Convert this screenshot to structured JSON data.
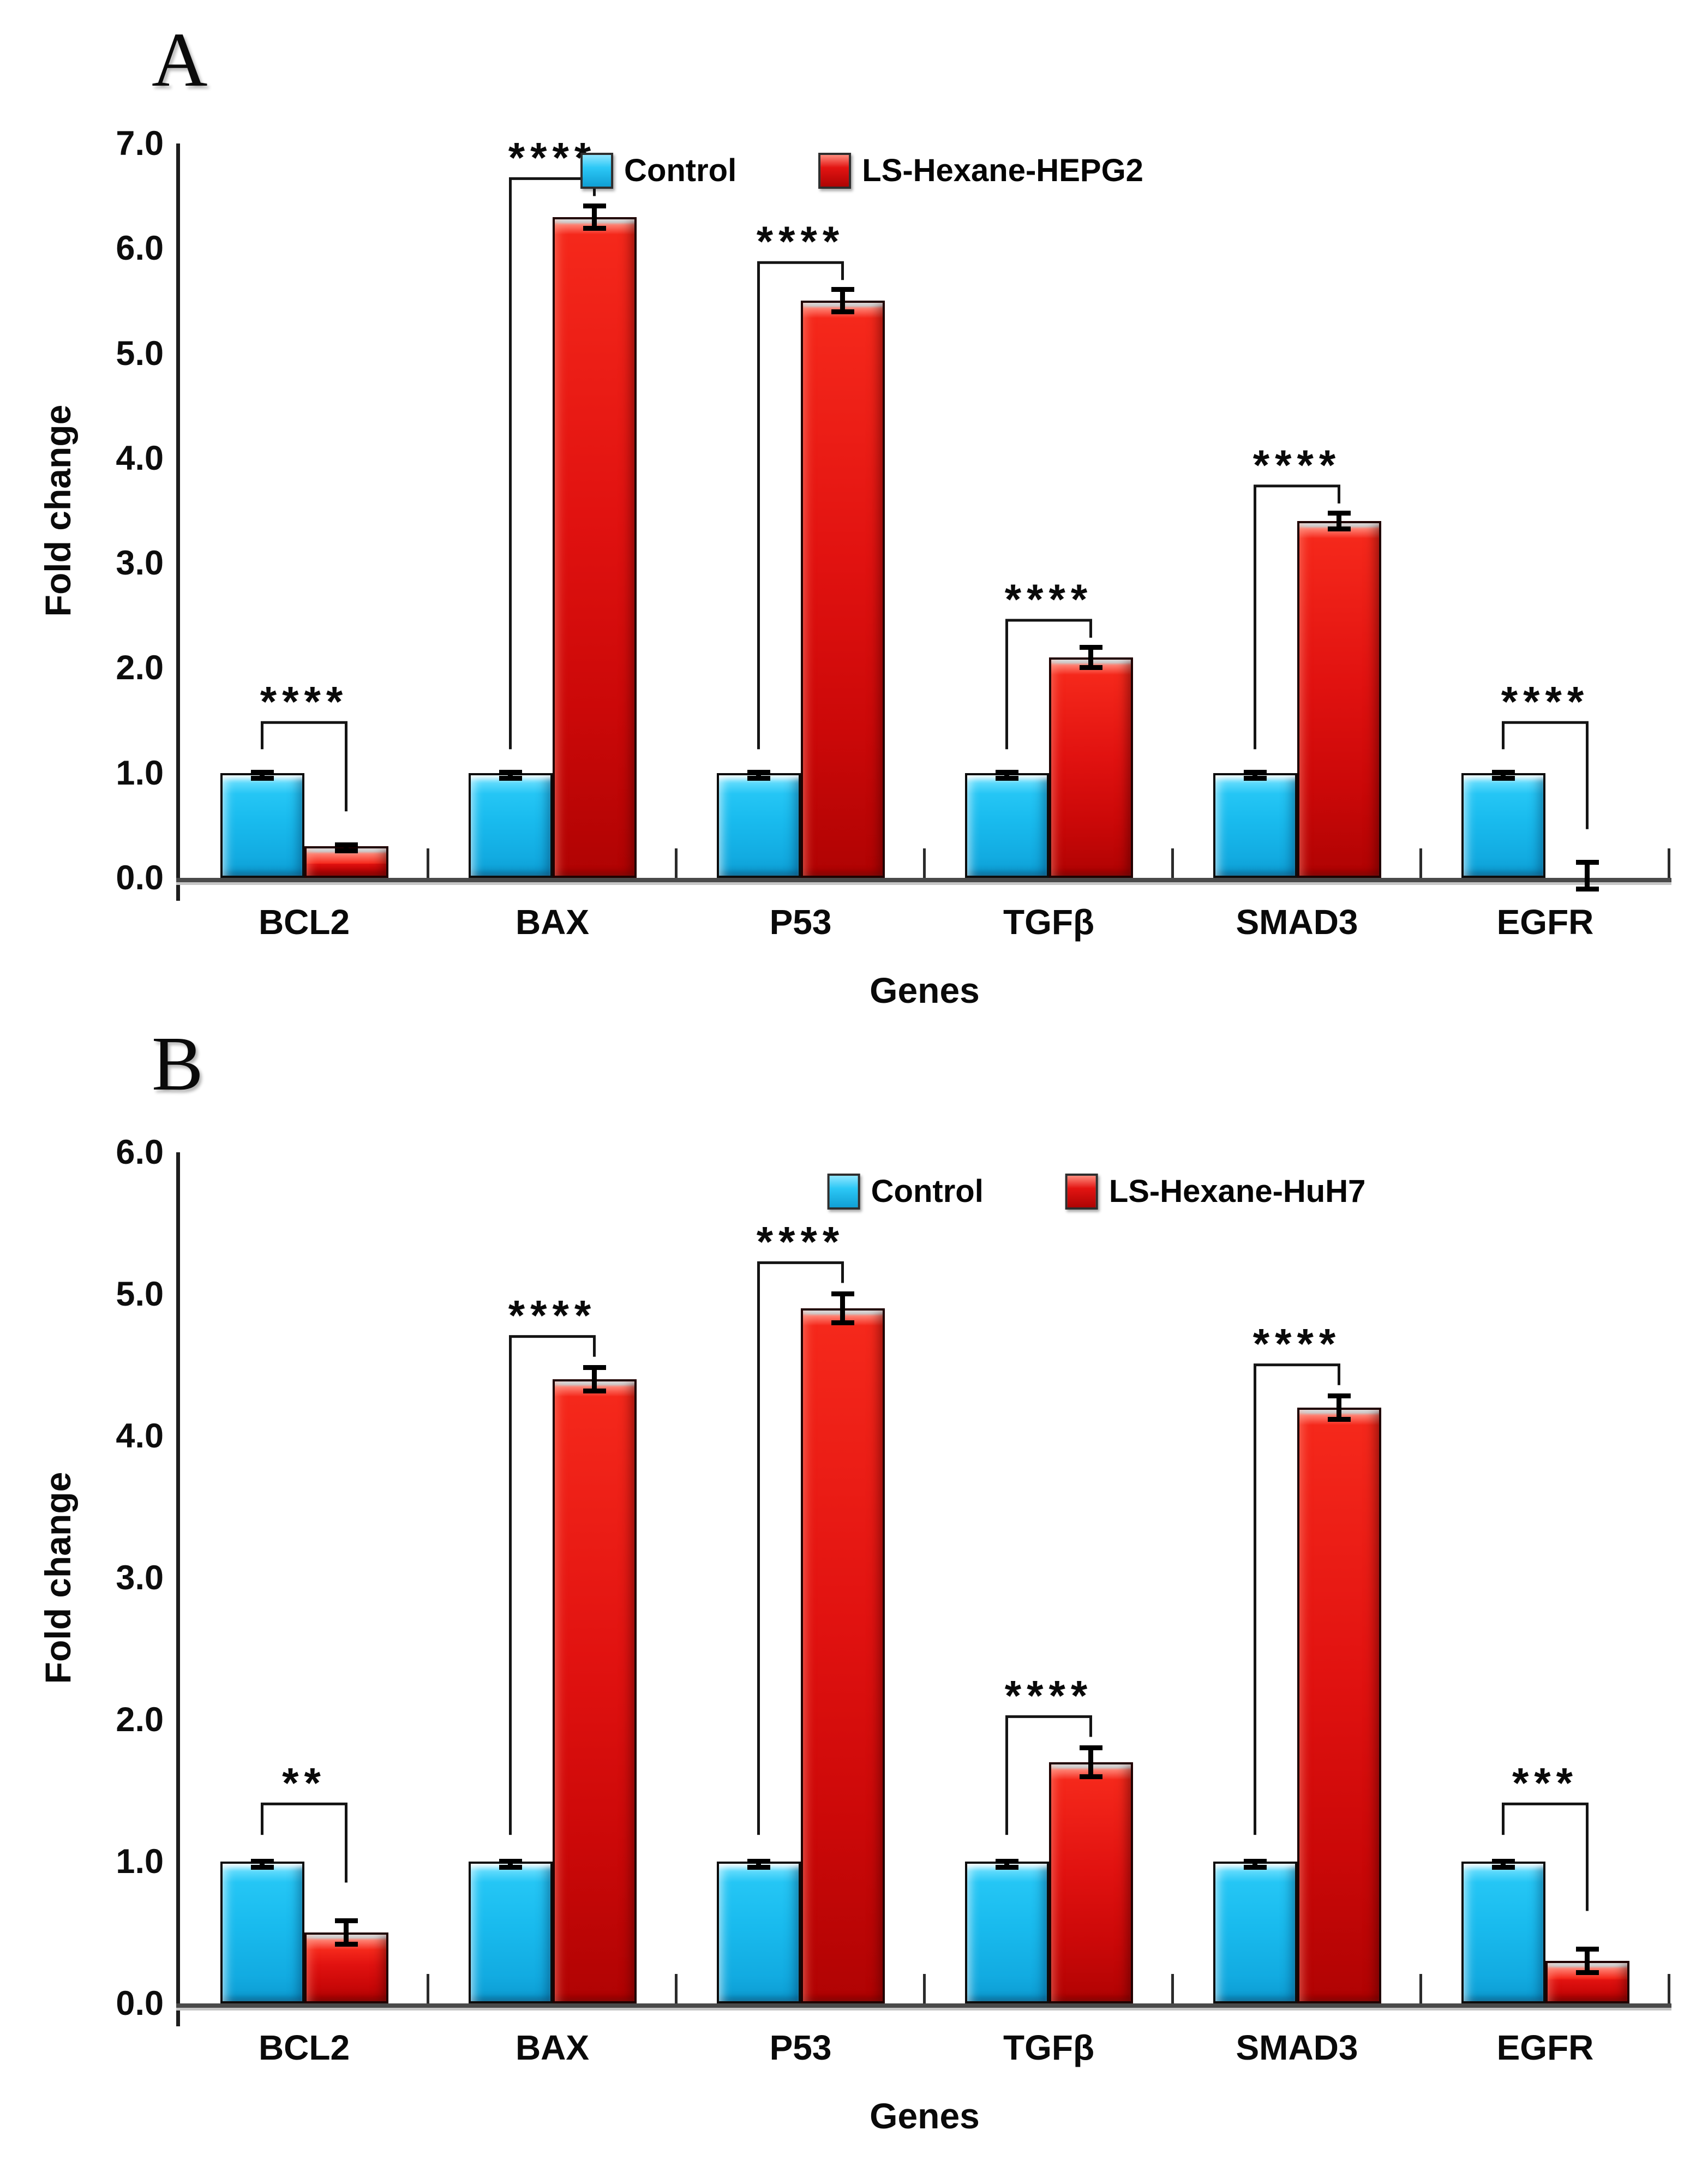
{
  "figure": {
    "background": "#ffffff"
  },
  "panels": [
    {
      "label": "A"
    },
    {
      "label": "B"
    }
  ],
  "chart_data": [
    {
      "type": "bar",
      "panel": "A",
      "categories": [
        "BCL2",
        "BAX",
        "P53",
        "TGFβ",
        "SMAD3",
        "EGFR"
      ],
      "series": [
        {
          "name": "Control",
          "color": "#1FC0F2",
          "values": [
            1.0,
            1.0,
            1.0,
            1.0,
            1.0,
            1.0
          ],
          "errors": [
            0.03,
            0.03,
            0.03,
            0.03,
            0.03,
            0.03
          ]
        },
        {
          "name": "LS-Hexane-HEPG2",
          "color": "#D90E0E",
          "values": [
            0.3,
            6.3,
            5.5,
            2.1,
            3.4,
            0.02
          ],
          "errors": [
            0.04,
            0.13,
            0.13,
            0.12,
            0.1,
            0.15
          ]
        }
      ],
      "significance": [
        "****",
        "****",
        "****",
        "****",
        "****",
        "****"
      ],
      "xlabel": "Genes",
      "ylabel": "Fold change",
      "ylim": [
        0,
        7
      ],
      "ytick_step": 1.0,
      "ytick_format": "one-decimal",
      "legend_position": "top-center",
      "grid": false,
      "error_bar_color": "#000000",
      "axis_color": "#1d1d1d"
    },
    {
      "type": "bar",
      "panel": "B",
      "categories": [
        "BCL2",
        "BAX",
        "P53",
        "TGFβ",
        "SMAD3",
        "EGFR"
      ],
      "series": [
        {
          "name": "Control",
          "color": "#1FC0F2",
          "values": [
            1.0,
            1.0,
            1.0,
            1.0,
            1.0,
            1.0
          ],
          "errors": [
            0.02,
            0.02,
            0.02,
            0.02,
            0.02,
            0.02
          ]
        },
        {
          "name": "LS-Hexane-HuH7",
          "color": "#D90E0E",
          "values": [
            0.5,
            4.4,
            4.9,
            1.7,
            4.2,
            0.3
          ],
          "errors": [
            0.1,
            0.1,
            0.12,
            0.12,
            0.1,
            0.1
          ]
        }
      ],
      "significance": [
        "**",
        "****",
        "****",
        "****",
        "****",
        "***"
      ],
      "xlabel": "Genes",
      "ylabel": "Fold change",
      "ylim": [
        0,
        6
      ],
      "ytick_step": 1.0,
      "ytick_format": "one-decimal",
      "legend_position": "top-center",
      "grid": false,
      "error_bar_color": "#000000",
      "axis_color": "#1d1d1d"
    }
  ]
}
